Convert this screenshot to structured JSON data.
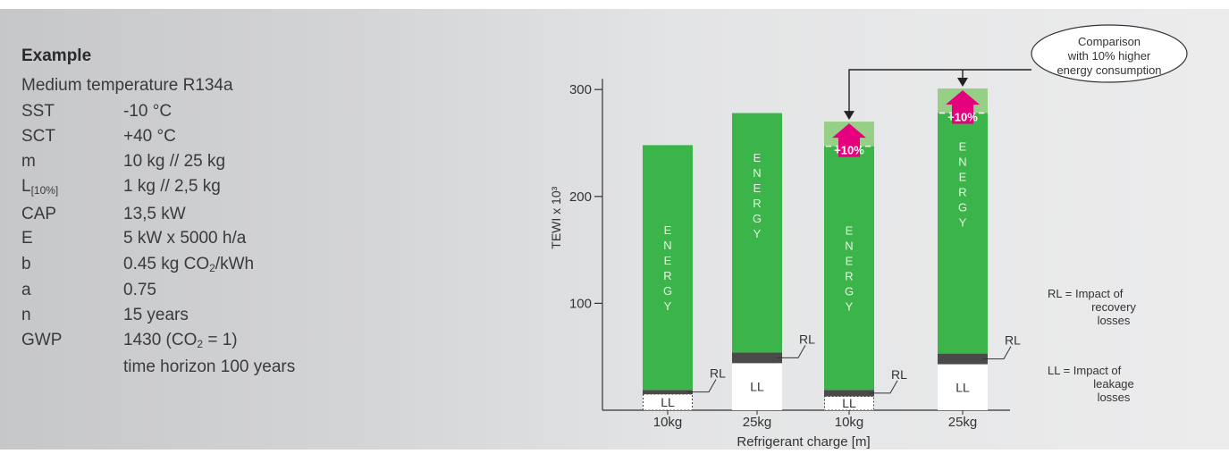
{
  "example": {
    "title": "Example",
    "subtitle": "Medium temperature R134a",
    "params": [
      {
        "key": "SST",
        "key_sub": "",
        "value": "-10 °C"
      },
      {
        "key": "SCT",
        "key_sub": "",
        "value": "+40 °C"
      },
      {
        "key": "m",
        "key_sub": "",
        "value": "10 kg // 25 kg"
      },
      {
        "key": "L",
        "key_sub": "[10%]",
        "value": "1 kg // 2,5 kg"
      },
      {
        "key": "CAP",
        "key_sub": "",
        "value": "13,5 kW"
      },
      {
        "key": "E",
        "key_sub": "",
        "value": "5 kW x 5000 h/a"
      },
      {
        "key": "b",
        "key_sub": "",
        "value_pre": "0.45 kg CO",
        "value_sub": "2",
        "value_post": "/kWh"
      },
      {
        "key": "a",
        "key_sub": "",
        "value": "0.75"
      },
      {
        "key": "n",
        "key_sub": "",
        "value": "15 years"
      },
      {
        "key": "GWP",
        "key_sub": "",
        "value_pre": "1430 (CO",
        "value_sub": "2",
        "value_post": " = 1)"
      },
      {
        "key": "",
        "key_sub": "",
        "value": "time horizon 100 years"
      }
    ]
  },
  "chart_data": {
    "type": "bar",
    "stacked": true,
    "ylabel": "TEWI x 10³",
    "xlabel": "Refrigerant charge [m]",
    "yticks": [
      100,
      200,
      300
    ],
    "ylim": [
      0,
      305
    ],
    "categories": [
      "10kg",
      "25kg",
      "10kg",
      "25kg"
    ],
    "series": [
      {
        "name": "LL",
        "values": [
          15,
          44,
          13,
          43
        ],
        "color": "#ffffff"
      },
      {
        "name": "RL",
        "values": [
          4,
          10,
          6,
          10
        ],
        "color": "#4a4a4a"
      },
      {
        "name": "ENERGY",
        "values": [
          229,
          224,
          228,
          225
        ],
        "color": "#3bb54a"
      },
      {
        "name": "+10%",
        "values": [
          0,
          0,
          23,
          23
        ],
        "color": "#98cf86"
      }
    ],
    "bar_labels": [
      "ENERGY",
      "ENERGY",
      "ENERGY",
      "ENERGY"
    ],
    "ll_label": "LL",
    "rl_label": "RL",
    "increase_label": "+10%",
    "callout": "Comparison with 10% higher energy consumption",
    "callout_lines": [
      "Comparison",
      "with 10% higher",
      "energy consumption"
    ],
    "legend": [
      {
        "abbr": "RL",
        "lines": [
          "RL = Impact of",
          "recovery",
          "losses"
        ]
      },
      {
        "abbr": "LL",
        "lines": [
          "LL = Impact of",
          "leakage",
          "losses"
        ]
      }
    ],
    "colors": {
      "energy": "#3bb54a",
      "energy_light": "#98cf86",
      "rl": "#4a4a4a",
      "arrow": "#e5007d",
      "axis": "#333333"
    }
  }
}
